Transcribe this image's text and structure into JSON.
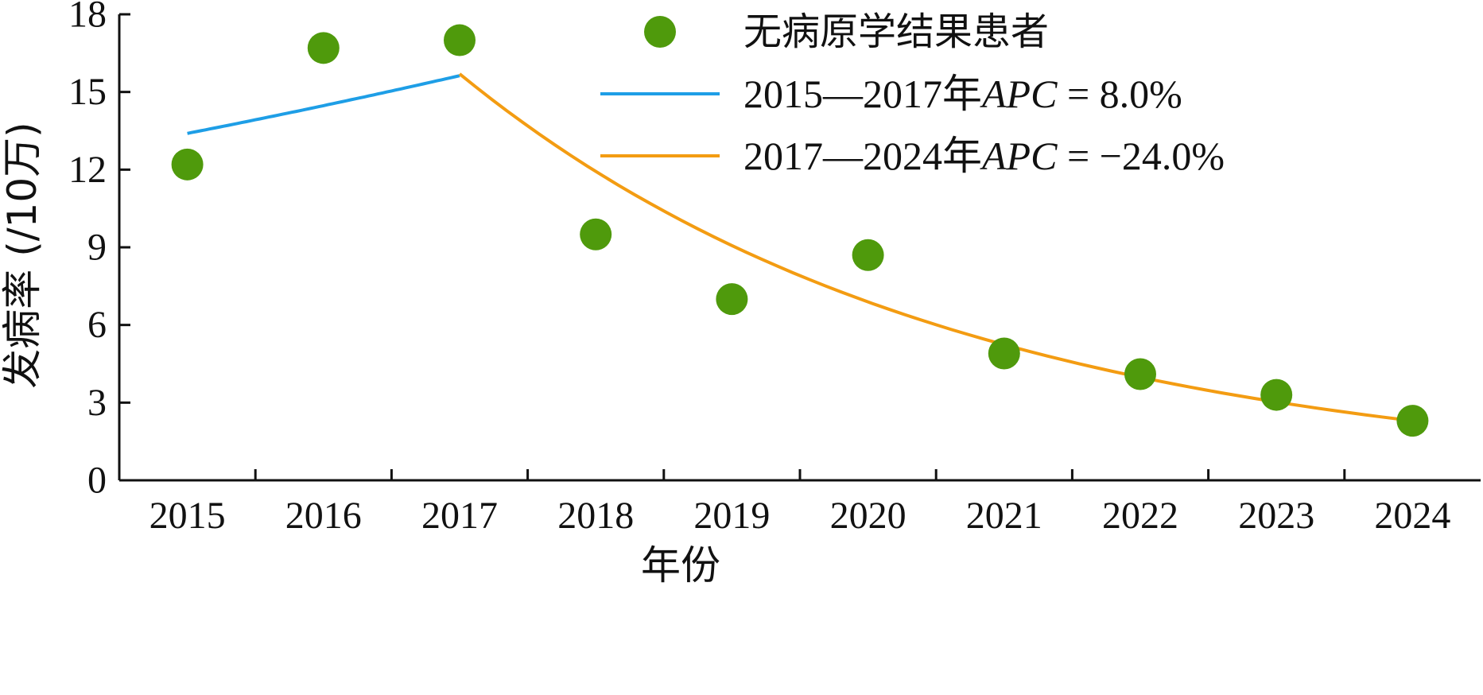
{
  "chart_data": {
    "type": "scatter",
    "xlabel": "年份",
    "ylabel": "发病率 (/10万)",
    "categories": [
      "2015",
      "2016",
      "2017",
      "2018",
      "2019",
      "2020",
      "2021",
      "2022",
      "2023",
      "2024"
    ],
    "ylim": [
      0,
      18
    ],
    "yticks": [
      "0",
      "3",
      "6",
      "9",
      "12",
      "15",
      "18"
    ],
    "grid": false,
    "legend_position": "top-right",
    "series": [
      {
        "name": "无病原学结果患者",
        "kind": "points",
        "color": "#4f9a0c",
        "x": [
          "2015",
          "2016",
          "2017",
          "2018",
          "2019",
          "2020",
          "2021",
          "2022",
          "2023",
          "2024"
        ],
        "values": [
          12.2,
          16.7,
          17.0,
          9.5,
          7.0,
          8.7,
          4.9,
          4.1,
          3.3,
          2.3
        ]
      },
      {
        "name": "2015—2017年APC = 8.0%",
        "name_prefix": "2015—2017年",
        "name_italic": "APC",
        "name_suffix": " = 8.0%",
        "kind": "trend",
        "color": "#1e9ee6",
        "x_start": "2015",
        "x_end": "2017",
        "y_start": 13.4,
        "apc": 8.0
      },
      {
        "name": "2017—2024年APC = −24.0%",
        "name_prefix": "2017—2024年",
        "name_italic": "APC",
        "name_suffix": " = −24.0%",
        "kind": "trend",
        "color": "#f39c12",
        "x_start": "2017",
        "x_end": "2024",
        "y_start": 15.7,
        "apc": -24.0
      }
    ]
  }
}
